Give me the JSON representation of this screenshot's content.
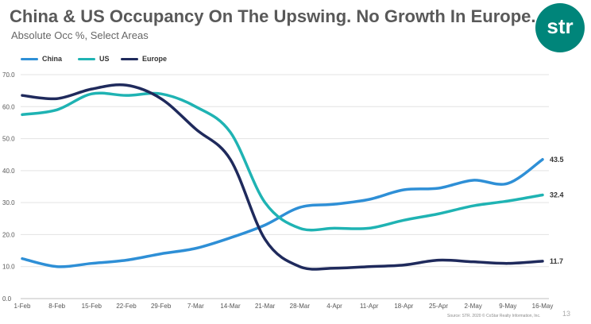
{
  "header": {
    "title": "China & US Occupancy On The Upswing. No Growth In Europe.",
    "subtitle": "Absolute Occ %, Select Areas",
    "logo_text": "str"
  },
  "footer": {
    "source": "Source: STR. 2020 © CoStar Realty Information, Inc.",
    "page_number": "13"
  },
  "colors": {
    "China": "#2e8fd6",
    "US": "#1fb3b3",
    "Europe": "#1f2a5c",
    "brand": "#00857a"
  },
  "chart_data": {
    "type": "line",
    "title": "China & US Occupancy On The Upswing. No Growth In Europe.",
    "subtitle": "Absolute Occ %, Select Areas",
    "xlabel": "",
    "ylabel": "",
    "ylim": [
      0,
      70
    ],
    "y_ticks": [
      "0.0",
      "10.0",
      "20.0",
      "30.0",
      "40.0",
      "50.0",
      "60.0",
      "70.0"
    ],
    "grid": "horizontal",
    "legend_position": "top-left",
    "x_ticks": [
      "1-Feb",
      "8-Feb",
      "15-Feb",
      "22-Feb",
      "29-Feb",
      "7-Mar",
      "14-Mar",
      "21-Mar",
      "28-Mar",
      "4-Apr",
      "11-Apr",
      "18-Apr",
      "25-Apr",
      "2-May",
      "9-May",
      "16-May"
    ],
    "x": [
      "1-Feb",
      "8-Feb",
      "15-Feb",
      "22-Feb",
      "29-Feb",
      "7-Mar",
      "14-Mar",
      "21-Mar",
      "28-Mar",
      "4-Apr",
      "11-Apr",
      "18-Apr",
      "25-Apr",
      "2-May",
      "9-May",
      "16-May"
    ],
    "series": [
      {
        "name": "China",
        "values": [
          12.5,
          10.0,
          11.0,
          12.0,
          14.0,
          15.7,
          19.0,
          23.0,
          28.5,
          29.5,
          31.0,
          34.0,
          34.5,
          37.0,
          36.0,
          43.5
        ],
        "end_label": "43.5"
      },
      {
        "name": "US",
        "values": [
          57.5,
          59.0,
          64.0,
          63.5,
          64.0,
          60.0,
          52.0,
          30.0,
          22.0,
          22.0,
          22.0,
          24.5,
          26.5,
          29.0,
          30.5,
          32.4
        ],
        "end_label": "32.4"
      },
      {
        "name": "Europe",
        "values": [
          63.5,
          62.5,
          65.5,
          66.7,
          62.5,
          53.0,
          43.5,
          18.5,
          10.0,
          9.5,
          10.0,
          10.5,
          12.0,
          11.5,
          11.0,
          11.7
        ],
        "end_label": "11.7"
      }
    ]
  }
}
